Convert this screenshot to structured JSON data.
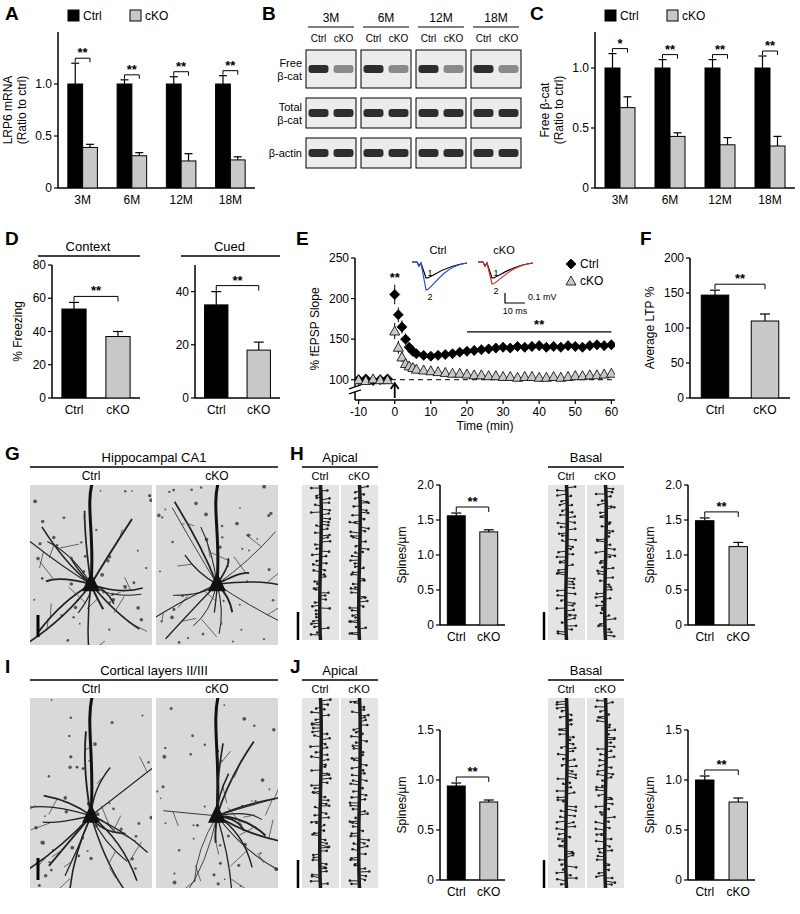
{
  "chart_data": [
    {
      "type": "bar",
      "panel": "A",
      "y_label": [
        "LRP6 mRNA",
        "(Ratio to ctrl)"
      ],
      "categories": [
        "3M",
        "6M",
        "12M",
        "18M"
      ],
      "series": [
        {
          "name": "Ctrl",
          "color": "#000000",
          "values": [
            1,
            1,
            1,
            1
          ],
          "errors": [
            0.2,
            0.04,
            0.07,
            0.08
          ]
        },
        {
          "name": "cKO",
          "color": "#c8c8c8",
          "values": [
            0.39,
            0.31,
            0.26,
            0.27
          ],
          "errors": [
            0.03,
            0.03,
            0.07,
            0.03
          ]
        }
      ],
      "ylim": [
        0,
        1.5
      ],
      "yticks": [
        0,
        0.5,
        {
          "value": 1,
          "label": "1.0"
        }
      ],
      "legend": "top",
      "significance": [
        "**",
        "**",
        "**",
        "**"
      ]
    },
    {
      "type": "bar",
      "panel": "C",
      "y_label": [
        "Free β-cat",
        "(Ratio to ctrl)"
      ],
      "categories": [
        "3M",
        "6M",
        "12M",
        "18M"
      ],
      "series": [
        {
          "name": "Ctrl",
          "color": "#000000",
          "values": [
            1,
            1,
            1,
            1
          ],
          "errors": [
            0.12,
            0.07,
            0.07,
            0.1
          ]
        },
        {
          "name": "cKO",
          "color": "#c8c8c8",
          "values": [
            0.67,
            0.43,
            0.36,
            0.35
          ],
          "errors": [
            0.09,
            0.03,
            0.06,
            0.08
          ]
        }
      ],
      "ylim": [
        0,
        1.3
      ],
      "yticks": [
        0,
        0.5,
        {
          "value": 1,
          "label": "1.0"
        }
      ],
      "legend": "top",
      "significance": [
        "*",
        "**",
        "**",
        "**"
      ]
    },
    {
      "type": "bar",
      "panel": "D",
      "title": "Context",
      "y_label": [
        "% Freezing"
      ],
      "categories": [
        "Ctrl",
        "cKO"
      ],
      "values": [
        53.5,
        37
      ],
      "errors": [
        4,
        3
      ],
      "colors": [
        "#000000",
        "#c8c8c8"
      ],
      "ylim": [
        0,
        80
      ],
      "yticks": [
        0,
        20,
        40,
        60,
        80
      ],
      "significance": "**"
    },
    {
      "type": "bar",
      "title": "Cued",
      "categories": [
        "Ctrl",
        "cKO"
      ],
      "values": [
        35,
        18
      ],
      "errors": [
        5,
        3
      ],
      "colors": [
        "#000000",
        "#c8c8c8"
      ],
      "ylim": [
        0,
        50
      ],
      "yticks": [
        0,
        20,
        40
      ],
      "significance": "**"
    },
    {
      "type": "scatter",
      "panel": "E",
      "y_label": [
        "% fEPSP Slope"
      ],
      "x_label": "Time (min)",
      "x": [
        -10,
        -8,
        -6,
        -4,
        -2,
        0,
        1,
        2,
        3,
        4,
        5,
        6,
        8,
        10,
        12,
        14,
        16,
        18,
        20,
        22,
        24,
        26,
        28,
        30,
        32,
        34,
        36,
        38,
        40,
        42,
        44,
        46,
        48,
        50,
        52,
        54,
        56,
        58,
        60
      ],
      "series": [
        {
          "name": "Ctrl",
          "color": "#000000",
          "marker": "diamond",
          "values": [
            100,
            101,
            99,
            100,
            101,
            205,
            180,
            165,
            150,
            140,
            135,
            132,
            130,
            129,
            130,
            131,
            132,
            134,
            135,
            136,
            137,
            138,
            139,
            140,
            139,
            141,
            140,
            141,
            142,
            140,
            141,
            140,
            142,
            141,
            140,
            142,
            143,
            142,
            143
          ],
          "errors": [
            3,
            3,
            3,
            3,
            3,
            12,
            9,
            8,
            7,
            6,
            6,
            5,
            5,
            5,
            5,
            5,
            5,
            5,
            6,
            6,
            6,
            6,
            6,
            6,
            6,
            6,
            6,
            6,
            6,
            6,
            6,
            6,
            6,
            6,
            6,
            6,
            6,
            6,
            6
          ]
        },
        {
          "name": "cKO",
          "color": "#c8c8c8",
          "marker": "triangle",
          "values": [
            100,
            99,
            101,
            100,
            100,
            160,
            140,
            128,
            120,
            117,
            115,
            113,
            112,
            111,
            110,
            109,
            108,
            108,
            107,
            106,
            106,
            105,
            105,
            104,
            104,
            103,
            104,
            104,
            103,
            103,
            104,
            103,
            104,
            105,
            105,
            106,
            106,
            107,
            108
          ],
          "errors": [
            3,
            3,
            3,
            3,
            3,
            10,
            8,
            6,
            5,
            5,
            5,
            5,
            5,
            5,
            5,
            5,
            5,
            5,
            5,
            5,
            5,
            5,
            5,
            5,
            5,
            5,
            5,
            5,
            5,
            5,
            5,
            5,
            5,
            5,
            5,
            5,
            5,
            5,
            5
          ]
        }
      ],
      "xlim": [
        -11,
        61
      ],
      "xticks": [
        -10,
        0,
        10,
        20,
        30,
        40,
        50,
        60
      ],
      "ylim": [
        75,
        250
      ],
      "yticks": [
        100,
        150,
        200,
        250
      ],
      "reference_line": 100,
      "arrow_x": 0,
      "legend": "top-right",
      "annotations": [
        {
          "text": "**",
          "x": 0
        },
        {
          "text": "**",
          "x": [
            20,
            60
          ]
        }
      ],
      "inset": {
        "labels": [
          "Ctrl",
          "cKO"
        ],
        "trace_labels": [
          "1",
          "2"
        ],
        "scale_labels": [
          "0.1 mV",
          "10 ms"
        ]
      }
    },
    {
      "type": "bar",
      "panel": "F",
      "y_label": [
        "Average LTP %"
      ],
      "categories": [
        "Ctrl",
        "cKO"
      ],
      "values": [
        147,
        110
      ],
      "errors": [
        7,
        10
      ],
      "colors": [
        "#000000",
        "#c8c8c8"
      ],
      "ylim": [
        0,
        200
      ],
      "yticks": [
        0,
        50,
        100,
        150,
        200
      ],
      "significance": "**"
    },
    {
      "type": "bar",
      "y_label": [
        "Spines/µm"
      ],
      "categories": [
        "Ctrl",
        "cKO"
      ],
      "values": [
        1.56,
        1.33
      ],
      "errors": [
        0.04,
        0.03
      ],
      "colors": [
        "#000000",
        "#c8c8c8"
      ],
      "ylim": [
        0,
        2
      ],
      "yticks": [
        0,
        0.5,
        {
          "value": 1,
          "label": "1.0"
        },
        1.5,
        {
          "value": 2,
          "label": "2.0"
        }
      ],
      "significance": "**"
    },
    {
      "type": "bar",
      "y_label": [
        "Spines/µm"
      ],
      "categories": [
        "Ctrl",
        "cKO"
      ],
      "values": [
        1.49,
        1.12
      ],
      "errors": [
        0.04,
        0.06
      ],
      "colors": [
        "#000000",
        "#c8c8c8"
      ],
      "ylim": [
        0,
        2
      ],
      "yticks": [
        0,
        0.5,
        {
          "value": 1,
          "label": "1.0"
        },
        1.5,
        {
          "value": 2,
          "label": "2.0"
        }
      ],
      "significance": "**"
    },
    {
      "type": "bar",
      "y_label": [
        "Spines/µm"
      ],
      "categories": [
        "Ctrl",
        "cKO"
      ],
      "values": [
        0.94,
        0.78
      ],
      "errors": [
        0.03,
        0.02
      ],
      "colors": [
        "#000000",
        "#c8c8c8"
      ],
      "ylim": [
        0,
        1.5
      ],
      "yticks": [
        0,
        0.5,
        {
          "value": 1,
          "label": "1.0"
        },
        1.5
      ],
      "significance": "**"
    },
    {
      "type": "bar",
      "y_label": [
        "Spines/µm"
      ],
      "categories": [
        "Ctrl",
        "cKO"
      ],
      "values": [
        1.0,
        0.78
      ],
      "errors": [
        0.04,
        0.04
      ],
      "colors": [
        "#000000",
        "#c8c8c8"
      ],
      "ylim": [
        0,
        1.5
      ],
      "yticks": [
        0,
        0.5,
        {
          "value": 1,
          "label": "1.0"
        },
        1.5
      ],
      "significance": "**"
    }
  ],
  "figures": {
    "B": {
      "panel": "B",
      "groups": [
        "3M",
        "6M",
        "12M",
        "18M"
      ],
      "lanes": [
        "Ctrl",
        "cKO"
      ],
      "rows": [
        [
          "Free",
          "β-cat"
        ],
        [
          "Total",
          "β-cat"
        ],
        [
          "β-actin"
        ]
      ]
    },
    "G": {
      "panel": "G",
      "title": "Hippocampal CA1",
      "labels": [
        "Ctrl",
        "cKO"
      ]
    },
    "H": {
      "panel": "H",
      "strips": [
        {
          "title": "Apical",
          "labels": [
            "Ctrl",
            "cKO"
          ]
        },
        {
          "title": "Basal",
          "labels": [
            "Ctrl",
            "cKO"
          ]
        }
      ]
    },
    "I": {
      "panel": "I",
      "title": "Cortical layers II/III",
      "labels": [
        "Ctrl",
        "cKO"
      ]
    },
    "J": {
      "panel": "J",
      "strips": [
        {
          "title": "Apical",
          "labels": [
            "Ctrl",
            "cKO"
          ]
        },
        {
          "title": "Basal",
          "labels": [
            "Ctrl",
            "cKO"
          ]
        }
      ]
    }
  }
}
